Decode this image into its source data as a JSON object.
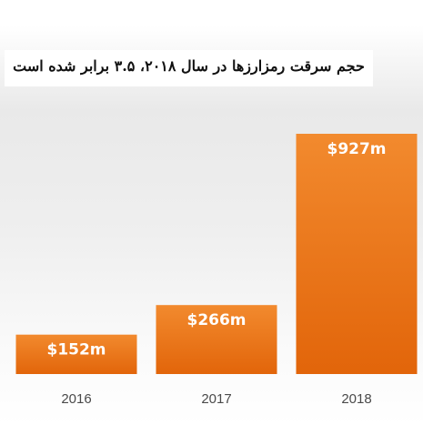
{
  "chart_data": {
    "type": "bar",
    "title": "حجم سرقت رمزارزها در سال ۲۰۱۸، ۳.۵ برابر شده است",
    "categories": [
      "2016",
      "2017",
      "2018"
    ],
    "values": [
      152,
      266,
      927
    ],
    "value_labels": [
      "$152m",
      "$266m",
      "$927m"
    ],
    "xlabel": "",
    "ylabel": "",
    "ylim": [
      0,
      950
    ],
    "grid": false,
    "legend": "none",
    "colors": {
      "bar_top": "#F28A2E",
      "bar_bottom": "#E2650A",
      "value_label": "#FFFFFF",
      "tick_label": "#4A4A4A"
    }
  }
}
